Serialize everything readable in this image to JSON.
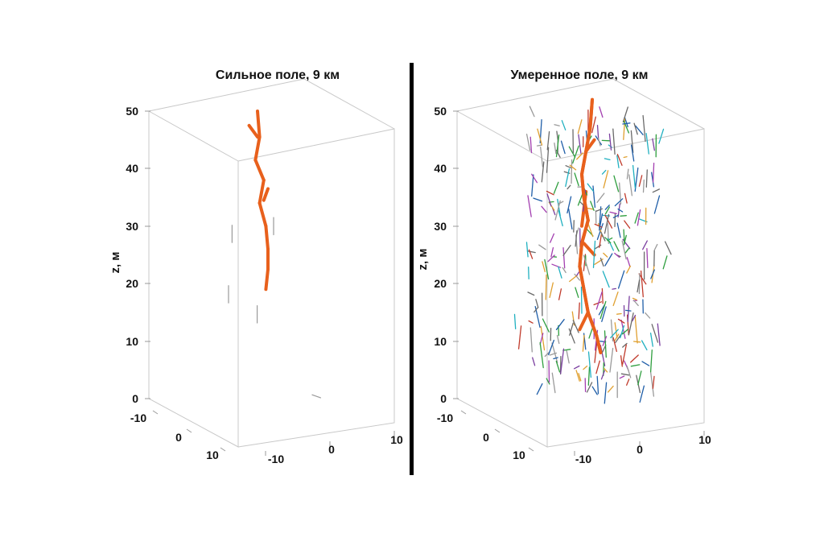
{
  "chart_data": [
    {
      "type": "scatter",
      "subtype": "3d-line-segments",
      "title": "Сильное поле, 9 км",
      "xlabel": "",
      "ylabel": "",
      "zlabel": "z, м",
      "x_ticks": [
        "-10",
        "0",
        "10"
      ],
      "y_ticks": [
        "-10",
        "0",
        "10"
      ],
      "z_ticks": [
        "0",
        "10",
        "20",
        "30",
        "40",
        "50"
      ],
      "xlim": [
        -15,
        15
      ],
      "ylim": [
        -15,
        15
      ],
      "zlim": [
        0,
        50
      ],
      "grid": false,
      "main_channel": {
        "color": "#e8601c",
        "points": [
          [
            0,
            0,
            50
          ],
          [
            0.5,
            0,
            45.5
          ],
          [
            -0.5,
            0,
            41.5
          ],
          [
            1.5,
            0,
            38
          ],
          [
            0.5,
            0,
            34
          ],
          [
            2,
            0,
            30
          ],
          [
            2.5,
            0,
            26
          ],
          [
            2.5,
            0,
            22.5
          ],
          [
            2,
            0,
            19
          ]
        ],
        "branches": [
          [
            [
              0,
              0,
              45.5
            ],
            [
              -2,
              0,
              47.5
            ]
          ],
          [
            [
              1.5,
              0,
              34.5
            ],
            [
              2.5,
              0,
              36.5
            ]
          ]
        ]
      },
      "segments": [
        {
          "from": [
            -8,
            5,
            28
          ],
          "to": [
            -8,
            5,
            31
          ],
          "color": "#9a9a9a"
        },
        {
          "from": [
            5,
            -3,
            28
          ],
          "to": [
            5,
            -3,
            31
          ],
          "color": "#9a9a9a"
        },
        {
          "from": [
            -10,
            8,
            18
          ],
          "to": [
            -10,
            8,
            21
          ],
          "color": "#9a9a9a"
        },
        {
          "from": [
            -2,
            5,
            14
          ],
          "to": [
            -2,
            5,
            17
          ],
          "color": "#9a9a9a"
        },
        {
          "from": [
            10,
            8,
            2
          ],
          "to": [
            12,
            8,
            1.5
          ],
          "color": "#9a9a9a"
        }
      ]
    },
    {
      "type": "scatter",
      "subtype": "3d-line-segments",
      "title": "Умеренное поле, 9 км",
      "xlabel": "",
      "ylabel": "",
      "zlabel": "z, м",
      "x_ticks": [
        "-10",
        "0",
        "10"
      ],
      "y_ticks": [
        "-10",
        "0",
        "10"
      ],
      "z_ticks": [
        "0",
        "10",
        "20",
        "30",
        "40",
        "50"
      ],
      "xlim": [
        -15,
        15
      ],
      "ylim": [
        -15,
        15
      ],
      "zlim": [
        0,
        50
      ],
      "grid": false,
      "main_channel": {
        "color": "#e8601c",
        "points": [
          [
            0,
            0,
            52
          ],
          [
            -0.5,
            0,
            47
          ],
          [
            -1.5,
            0,
            43
          ],
          [
            -2.5,
            0,
            39
          ],
          [
            -2,
            0,
            35
          ],
          [
            -1,
            0,
            31
          ],
          [
            -2.5,
            0,
            27
          ],
          [
            -3,
            0,
            23
          ],
          [
            -2,
            0,
            19
          ],
          [
            -1,
            0,
            15
          ],
          [
            1,
            0,
            11
          ],
          [
            2,
            0,
            8
          ]
        ],
        "branches": [
          [
            [
              -1.5,
              0,
              43
            ],
            [
              0.5,
              0,
              45
            ]
          ],
          [
            [
              -2,
              0,
              27
            ],
            [
              0.5,
              0,
              25
            ]
          ],
          [
            [
              -1,
              0,
              15
            ],
            [
              -3,
              0,
              12
            ]
          ],
          [
            [
              -2.5,
              0,
              30
            ],
            [
              -1.5,
              0,
              36
            ]
          ]
        ]
      },
      "segment_palette": [
        "#9a9a9a",
        "#7b3fa0",
        "#2e9e3e",
        "#1f5ea8",
        "#e0a030",
        "#c03a2b",
        "#20b0c0",
        "#6a6a6a",
        "#a33fb0"
      ]
    }
  ]
}
